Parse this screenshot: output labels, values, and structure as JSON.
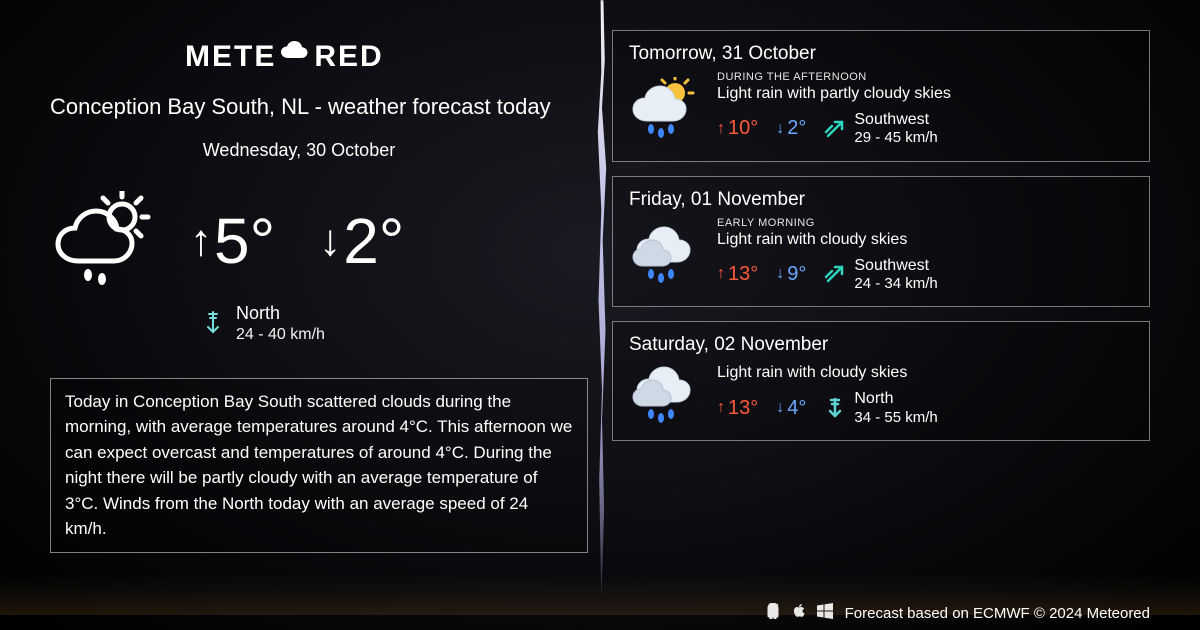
{
  "brand": {
    "name_left": "METE",
    "name_right": "RED"
  },
  "colors": {
    "background": "#0a0a0e",
    "text": "#ffffff",
    "hi": "#ff5a3c",
    "lo": "#6aa8ff",
    "sw_arrow": "#2dd4bf",
    "n_arrow": "#5fd4d4",
    "card_border": "rgba(255,255,255,0.45)"
  },
  "today": {
    "title": "Conception Bay South, NL - weather forecast today",
    "date": "Wednesday, 30 October",
    "icon": "partly-cloudy-rain-outline",
    "hi": "5°",
    "lo": "2°",
    "wind": {
      "dir": "North",
      "range": "24 - 40 km/h",
      "icon": "n"
    },
    "summary": "Today in Conception Bay South scattered clouds during the morning, with average temperatures around 4°C. This afternoon we can expect overcast and temperatures of around 4°C. During the night there will be partly cloudy with an average temperature of 3°C. Winds from the North today with an average speed of 24 km/h."
  },
  "forecast": [
    {
      "date": "Tomorrow, 31 October",
      "period": "DURING THE AFTERNOON",
      "desc": "Light rain with partly cloudy skies",
      "icon": "sun-cloud-rain",
      "hi": "10°",
      "lo": "2°",
      "wind": {
        "dir": "Southwest",
        "range": "29 - 45 km/h",
        "icon": "sw"
      }
    },
    {
      "date": "Friday, 01 November",
      "period": "EARLY MORNING",
      "desc": "Light rain with cloudy skies",
      "icon": "clouds-rain",
      "hi": "13°",
      "lo": "9°",
      "wind": {
        "dir": "Southwest",
        "range": "24 - 34 km/h",
        "icon": "sw"
      }
    },
    {
      "date": "Saturday, 02 November",
      "period": "",
      "desc": "Light rain with cloudy skies",
      "icon": "clouds-rain",
      "hi": "13°",
      "lo": "4°",
      "wind": {
        "dir": "North",
        "range": "34 - 55 km/h",
        "icon": "n"
      }
    }
  ],
  "footer": {
    "text": "Forecast based on ECMWF © 2024 Meteored",
    "platforms": [
      "android",
      "apple",
      "windows"
    ]
  },
  "typography": {
    "title_fontsize": 22,
    "big_temp_fontsize": 64,
    "card_date_fontsize": 19,
    "summary_fontsize": 17
  }
}
